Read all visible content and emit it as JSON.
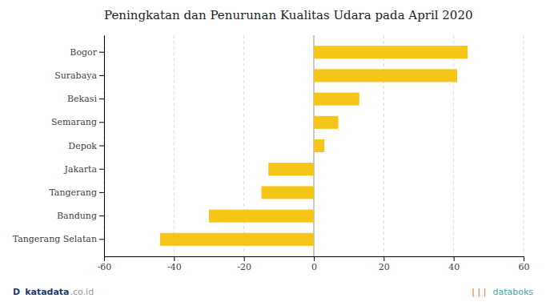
{
  "chart_data": {
    "type": "bar",
    "orientation": "horizontal",
    "title": "Peningkatan dan Penurunan Kualitas Udara pada April 2020",
    "categories": [
      "Tangerang Selatan",
      "Bandung",
      "Tangerang",
      "Jakarta",
      "Depok",
      "Semarang",
      "Bekasi",
      "Surabaya",
      "Bogor"
    ],
    "values": [
      -44,
      -30,
      -15,
      -13,
      3,
      7,
      13,
      41,
      44
    ],
    "color": "#F5C518",
    "xlim": [
      -60,
      60
    ],
    "xticks": [
      -60,
      -40,
      -20,
      0,
      20,
      40,
      60
    ],
    "grid": true,
    "annotations": [
      {
        "text": "D",
        "color": "#1a3a6b"
      },
      {
        "text": "katadata",
        "color": "#1a3a6b"
      },
      {
        "text": ".co.id",
        "color": "#999999"
      },
      {
        "text": "| | |",
        "color": "#E07030"
      },
      {
        "text": "databoks",
        "color": "#3aA8A8"
      }
    ]
  }
}
